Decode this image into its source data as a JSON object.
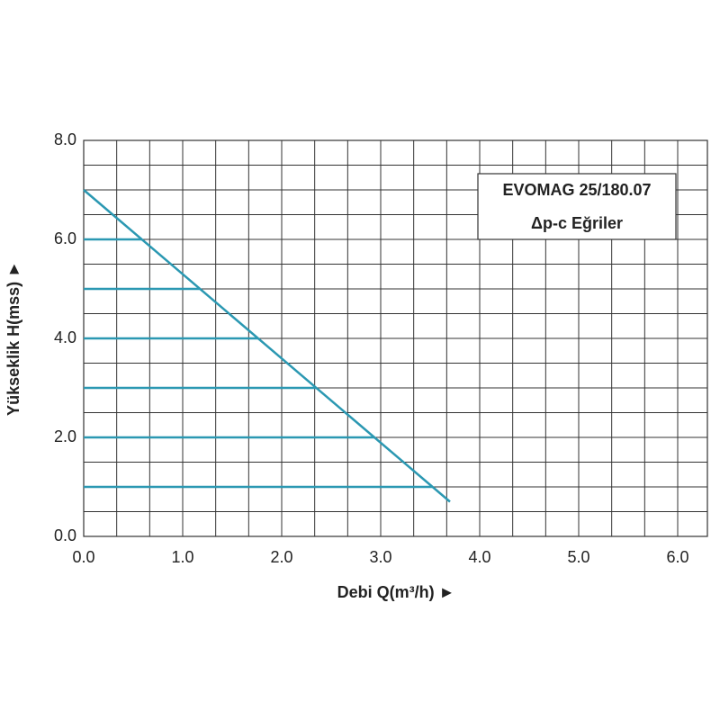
{
  "chart_data": {
    "type": "line",
    "xlabel": "Debi Q(m³/h) ►",
    "ylabel": "Yükseklik H(mss) ►",
    "annotations": [
      "EVOMAG 25/180.07",
      "Δp-c Eğriler"
    ],
    "xlim": [
      0,
      6.3
    ],
    "ylim": [
      0,
      8
    ],
    "xticks": [
      {
        "value": 0,
        "label": "0.0"
      },
      {
        "value": 1,
        "label": "1.0"
      },
      {
        "value": 2,
        "label": "2.0"
      },
      {
        "value": 3,
        "label": "3.0"
      },
      {
        "value": 4,
        "label": "4.0"
      },
      {
        "value": 5,
        "label": "5.0"
      },
      {
        "value": 6,
        "label": "6.0"
      }
    ],
    "yticks": [
      {
        "value": 0,
        "label": "0.0"
      },
      {
        "value": 2,
        "label": "2.0"
      },
      {
        "value": 4,
        "label": "4.0"
      },
      {
        "value": 6,
        "label": "6.0"
      },
      {
        "value": 8,
        "label": "8.0"
      }
    ],
    "grid": true,
    "series": [
      {
        "color": "#2b98b2",
        "x": [
          0,
          3.7
        ],
        "values": [
          7.0,
          0.7
        ]
      },
      {
        "color": "#2b98b2",
        "x": [
          0,
          0.59
        ],
        "values": [
          6,
          6
        ]
      },
      {
        "color": "#2b98b2",
        "x": [
          0,
          1.17
        ],
        "values": [
          5,
          5
        ]
      },
      {
        "color": "#2b98b2",
        "x": [
          0,
          1.76
        ],
        "values": [
          4,
          4
        ]
      },
      {
        "color": "#2b98b2",
        "x": [
          0,
          2.35
        ],
        "values": [
          3,
          3
        ]
      },
      {
        "color": "#2b98b2",
        "x": [
          0,
          2.94
        ],
        "values": [
          2,
          2
        ]
      },
      {
        "color": "#2b98b2",
        "x": [
          0,
          3.52
        ],
        "values": [
          1,
          1
        ]
      }
    ]
  }
}
